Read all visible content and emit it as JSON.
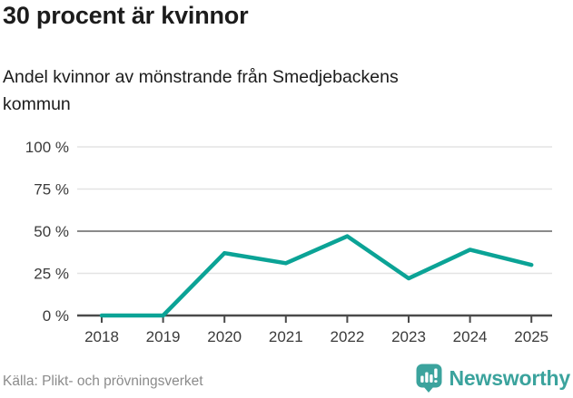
{
  "header": {
    "title": "30 procent är kvinnor",
    "subtitle": "Andel kvinnor av mönstrande från Smedjebackens kommun"
  },
  "footer": {
    "source": "Källa: Plikt- och prövningsverket",
    "brand": "Newsworthy"
  },
  "icons": {
    "brand_icon": "bar-chart-in-speech-bubble"
  },
  "colors": {
    "line": "#0ba396",
    "brand": "#3ba39d",
    "grid": "#e3e3e3",
    "grid_strong": "#8a8a8a",
    "axis": "#4a4a4a",
    "tick_label": "#3b3b3b",
    "text": "#1c1c1c",
    "source_text": "#8b8b8b"
  },
  "chart_data": {
    "type": "line",
    "title": "30 procent är kvinnor",
    "subtitle": "Andel kvinnor av mönstrande från Smedjebackens kommun",
    "series": [
      {
        "name": "Andel kvinnor av mönstrande (%)",
        "values": [
          0,
          0,
          37,
          31,
          47,
          22,
          39,
          30
        ]
      }
    ],
    "categories": [
      "2018",
      "2019",
      "2020",
      "2021",
      "2022",
      "2023",
      "2024",
      "2025"
    ],
    "xlabel": "",
    "ylabel": "",
    "ylim": [
      0,
      100
    ],
    "yticks": [
      0,
      25,
      50,
      75,
      100
    ],
    "ytick_suffix": " %",
    "grid": true,
    "emphasized_gridline": 50,
    "legend": "none"
  }
}
